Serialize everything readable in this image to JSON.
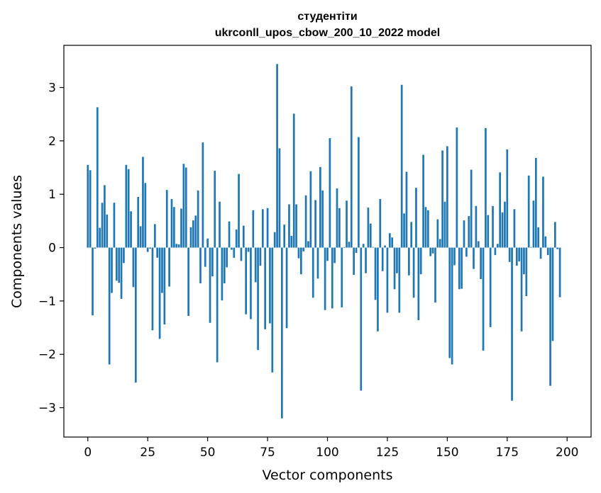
{
  "chart_data": {
    "type": "bar",
    "title_line1": "студентіти",
    "title_line2": "ukrconll_upos_cbow_200_10_2022 model",
    "xlabel": "Vector components",
    "ylabel": "Components values",
    "xlim": [
      -10,
      210
    ],
    "ylim": [
      -3.55,
      3.79
    ],
    "xticks": [
      0,
      25,
      50,
      75,
      100,
      125,
      150,
      175,
      200
    ],
    "yticks": [
      -3,
      -2,
      -1,
      0,
      1,
      2,
      3
    ],
    "bar_color": "#1f77b4",
    "x_start": 0,
    "values": [
      1.55,
      1.45,
      -1.27,
      -0.02,
      2.63,
      0.37,
      0.84,
      1.17,
      0.62,
      -2.19,
      -0.85,
      0.84,
      -0.62,
      -0.66,
      -0.96,
      -0.29,
      1.55,
      1.47,
      0.68,
      -0.74,
      -2.53,
      0.95,
      0.4,
      1.7,
      1.21,
      -0.08,
      -0.02,
      -1.55,
      0.44,
      -0.19,
      -1.71,
      -0.85,
      -1.44,
      1.08,
      -0.73,
      0.91,
      0.76,
      0.07,
      0.06,
      0.73,
      1.57,
      1.5,
      -1.28,
      0.38,
      0.51,
      0.6,
      1.07,
      -0.67,
      1.97,
      -0.36,
      0.17,
      -1.41,
      -0.54,
      1.44,
      -2.15,
      0.86,
      -0.99,
      -0.67,
      -0.37,
      0.49,
      -0.04,
      -0.19,
      0.34,
      1.38,
      -0.25,
      0.41,
      -1.25,
      -0.08,
      -1.34,
      0.7,
      -0.65,
      -1.92,
      -0.34,
      0.72,
      -1.53,
      0.74,
      -1.42,
      -2.34,
      0.29,
      3.44,
      1.86,
      -3.2,
      0.43,
      -1.51,
      0.81,
      0.22,
      2.51,
      0.81,
      -0.2,
      -0.5,
      -0.07,
      0.98,
      0.12,
      1.43,
      -0.94,
      0.89,
      -0.58,
      1.51,
      1.07,
      -1.17,
      -0.25,
      2.05,
      -1.14,
      -0.29,
      1.11,
      0.74,
      -1.12,
      0.01,
      0.88,
      0.11,
      3.02,
      -0.51,
      -0.1,
      2.07,
      -2.68,
      0.07,
      -0.48,
      0.75,
      0.45,
      0.01,
      -0.98,
      -1.57,
      0.91,
      -0.44,
      0.04,
      -1.22,
      0.27,
      0.19,
      -0.78,
      -0.48,
      -1.22,
      3.05,
      0.64,
      1.42,
      -0.52,
      0.48,
      -0.94,
      1.12,
      -1.36,
      -0.5,
      1.74,
      0.76,
      0.7,
      -0.16,
      -0.11,
      -1.03,
      0.53,
      0.16,
      1.82,
      0.86,
      1.9,
      -2.07,
      -2.19,
      -0.33,
      2.25,
      -0.78,
      -0.77,
      0.51,
      -0.17,
      0.59,
      1.46,
      -0.4,
      0.78,
      0.12,
      -0.59,
      -1.93,
      2.24,
      0.61,
      -1.49,
      0.78,
      -0.14,
      0.07,
      1.41,
      0.66,
      0.86,
      1.84,
      -0.27,
      -2.87,
      0.72,
      -0.34,
      -0.26,
      -1.57,
      -0.5,
      -0.91,
      1.35,
      0.01,
      0.88,
      1.68,
      0.38,
      -0.21,
      1.33,
      0.21,
      -0.14,
      -2.59,
      -1.75,
      0.48,
      -0.03,
      -0.93
    ]
  }
}
